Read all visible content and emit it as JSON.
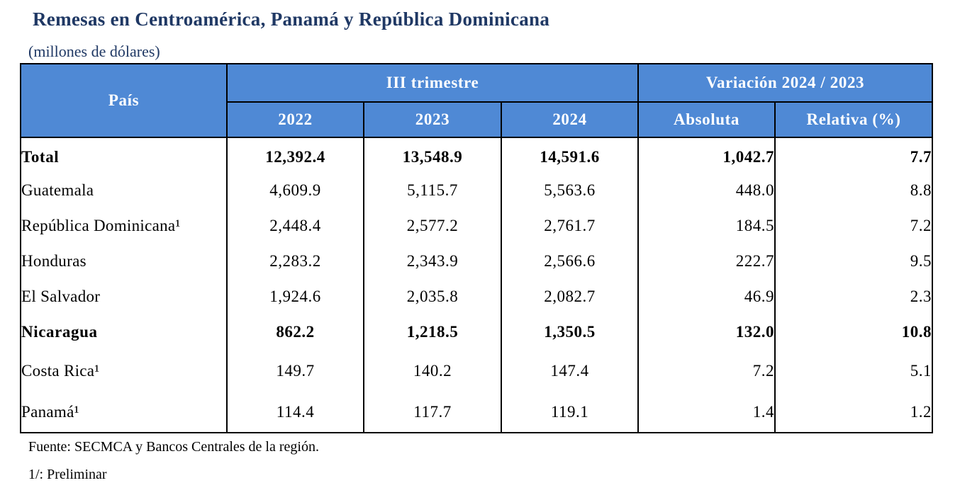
{
  "title": "Remesas en Centroamérica, Panamá y República Dominicana",
  "subtitle": "(millones de dólares)",
  "table": {
    "header": {
      "country": "País",
      "period_group": "III trimestre",
      "variation_group": "Variación 2024 / 2023",
      "years": [
        "2022",
        "2023",
        "2024"
      ],
      "absolute": "Absoluta",
      "relative": "Relativa (%)"
    },
    "rows": [
      {
        "country": "Total",
        "v2022": "12,392.4",
        "v2023": "13,548.9",
        "v2024": "14,591.6",
        "absolute": "1,042.7",
        "relative": "7.7",
        "bold": true
      },
      {
        "country": "Guatemala",
        "v2022": "4,609.9",
        "v2023": "5,115.7",
        "v2024": "5,563.6",
        "absolute": "448.0",
        "relative": "8.8",
        "bold": false
      },
      {
        "country": "República Dominicana¹",
        "v2022": "2,448.4",
        "v2023": "2,577.2",
        "v2024": "2,761.7",
        "absolute": "184.5",
        "relative": "7.2",
        "bold": false
      },
      {
        "country": "Honduras",
        "v2022": "2,283.2",
        "v2023": "2,343.9",
        "v2024": "2,566.6",
        "absolute": "222.7",
        "relative": "9.5",
        "bold": false
      },
      {
        "country": "El Salvador",
        "v2022": "1,924.6",
        "v2023": "2,035.8",
        "v2024": "2,082.7",
        "absolute": "46.9",
        "relative": "2.3",
        "bold": false
      },
      {
        "country": "Nicaragua",
        "v2022": "862.2",
        "v2023": "1,218.5",
        "v2024": "1,350.5",
        "absolute": "132.0",
        "relative": "10.8",
        "bold": true
      },
      {
        "country": "Costa Rica¹",
        "v2022": "149.7",
        "v2023": "140.2",
        "v2024": "147.4",
        "absolute": "7.2",
        "relative": "5.1",
        "bold": false
      },
      {
        "country": "Panamá¹",
        "v2022": "114.4",
        "v2023": "117.7",
        "v2024": "119.1",
        "absolute": "1.4",
        "relative": "1.2",
        "bold": false
      }
    ]
  },
  "notes": {
    "source": "Fuente: SECMCA y Bancos Centrales de la región.",
    "preliminary": "1/: Preliminar"
  },
  "colors": {
    "header_bg": "#4f89d5",
    "header_text": "#ffffff",
    "title": "#1f3864"
  }
}
